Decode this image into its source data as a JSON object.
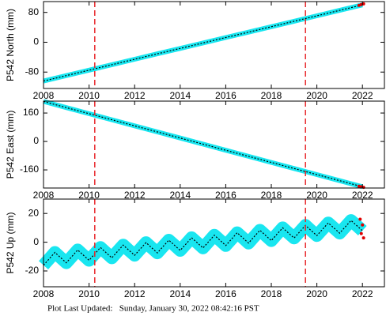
{
  "charts": [
    {
      "type": "line",
      "ylabel": "P542 North (mm)",
      "xlim": [
        2008,
        2023
      ],
      "ylim": [
        -124,
        109
      ],
      "xticks": [
        2008,
        2010,
        2012,
        2014,
        2016,
        2018,
        2020,
        2022
      ],
      "yticks": [
        -80,
        0,
        80
      ],
      "vlines": [
        2010.25,
        2019.5
      ],
      "vline_color": "#e8262a",
      "model_color": "#000000",
      "series": [
        {
          "color": "#19e6f0",
          "x": [
            2008,
            2009,
            2010,
            2011,
            2012,
            2013,
            2014,
            2015,
            2016,
            2017,
            2018,
            2019,
            2020,
            2021,
            2022
          ],
          "values": [
            -104,
            -89.4,
            -74.9,
            -60.3,
            -45.7,
            -31.1,
            -16.6,
            -2,
            12.6,
            27.1,
            41.7,
            56.3,
            70.9,
            85.4,
            100
          ]
        },
        {
          "color": "#e00000",
          "x": [
            2021.85,
            2021.95,
            2022.05
          ],
          "values": [
            99,
            101,
            103
          ]
        }
      ]
    },
    {
      "type": "line",
      "ylabel": "P542 East (mm)",
      "xlim": [
        2008,
        2023
      ],
      "ylim": [
        -262,
        227
      ],
      "xticks": [
        2008,
        2010,
        2012,
        2014,
        2016,
        2018,
        2020,
        2022
      ],
      "yticks": [
        -160,
        0,
        160
      ],
      "vlines": [
        2010.25,
        2019.5
      ],
      "vline_color": "#e8262a",
      "model_color": "#000000",
      "series": [
        {
          "color": "#19e6f0",
          "x": [
            2008,
            2009,
            2010,
            2011,
            2012,
            2013,
            2014,
            2015,
            2016,
            2017,
            2018,
            2019,
            2020,
            2021,
            2022
          ],
          "values": [
            225,
            190.7,
            156.4,
            122.1,
            87.9,
            53.6,
            19.3,
            -15,
            -49.3,
            -83.6,
            -117.9,
            -152.1,
            -186.4,
            -220.7,
            -255
          ]
        },
        {
          "color": "#e00000",
          "x": [
            2021.85,
            2021.95,
            2022.05
          ],
          "values": [
            -252,
            -255,
            -258
          ]
        }
      ]
    },
    {
      "type": "line",
      "ylabel": "P542 Up (mm)",
      "xlim": [
        2008,
        2023
      ],
      "ylim": [
        -31,
        30
      ],
      "xticks": [
        2008,
        2010,
        2012,
        2014,
        2016,
        2018,
        2020,
        2022
      ],
      "yticks": [
        -20,
        0,
        20
      ],
      "vlines": [
        2010.25,
        2019.5
      ],
      "vline_color": "#e8262a",
      "model_color": "#000000",
      "series": [
        {
          "color": "#19e6f0",
          "x": [
            2008,
            2008.25,
            2008.5,
            2008.75,
            2009,
            2009.25,
            2009.5,
            2009.75,
            2010,
            2010.25,
            2010.5,
            2010.75,
            2011,
            2011.25,
            2011.5,
            2011.75,
            2012,
            2012.25,
            2012.5,
            2012.75,
            2013,
            2013.25,
            2013.5,
            2013.75,
            2014,
            2014.25,
            2014.5,
            2014.75,
            2015,
            2015.25,
            2015.5,
            2015.75,
            2016,
            2016.25,
            2016.5,
            2016.75,
            2017,
            2017.25,
            2017.5,
            2017.75,
            2018,
            2018.25,
            2018.5,
            2018.75,
            2019,
            2019.25,
            2019.5,
            2019.75,
            2020,
            2020.25,
            2020.5,
            2020.75,
            2021,
            2021.25,
            2021.5,
            2021.75,
            2022
          ],
          "values": [
            -16,
            -11.6,
            -7.1,
            -10.7,
            -14.3,
            -9.9,
            -5.4,
            -9.0,
            -12.6,
            -8.1,
            -3.7,
            -7.3,
            -10.9,
            -6.4,
            -2.0,
            -5.6,
            -9.1,
            -4.7,
            -0.3,
            -3.9,
            -7.4,
            -3.0,
            1.4,
            -2.1,
            -5.7,
            -1.3,
            3.1,
            -0.4,
            -4.0,
            0.4,
            4.9,
            1.3,
            -2.3,
            2.1,
            6.6,
            3.0,
            -0.6,
            3.9,
            8.3,
            4.7,
            1.1,
            5.6,
            10.0,
            6.4,
            2.9,
            7.3,
            11.7,
            8.1,
            4.6,
            9.0,
            13.4,
            9.9,
            6.3,
            10.7,
            15.1,
            11.6,
            8.0
          ]
        },
        {
          "color": "#e00000",
          "x": [
            2021.9,
            2021.95,
            2022,
            2022.05
          ],
          "values": [
            16,
            6,
            12,
            3
          ]
        }
      ]
    }
  ],
  "footer": "Plot Last Updated:   Sunday, January 30, 2022 08:42:16 PST"
}
